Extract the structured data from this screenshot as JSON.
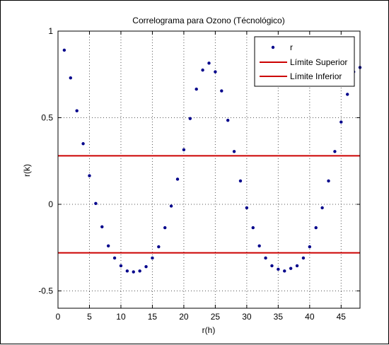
{
  "chart_data": {
    "type": "scatter",
    "title": "Correlograma para Ozono (Técnológico)",
    "xlabel": "r(h)",
    "ylabel": "r(k)",
    "xlim": [
      0,
      48
    ],
    "ylim": [
      -0.6,
      1
    ],
    "xticks": [
      0,
      5,
      10,
      15,
      20,
      25,
      30,
      35,
      40,
      45
    ],
    "yticks": [
      -0.5,
      0,
      0.5,
      1
    ],
    "ytick_labels": [
      "-0.5",
      "0",
      "0.5",
      "1"
    ],
    "grid": true,
    "legend_position": "top-right",
    "series": [
      {
        "name": "r",
        "marker": "dot",
        "color": "#00008b",
        "x": [
          1,
          2,
          3,
          4,
          5,
          6,
          7,
          8,
          9,
          10,
          11,
          12,
          13,
          14,
          15,
          16,
          17,
          18,
          19,
          20,
          21,
          22,
          23,
          24,
          25,
          26,
          27,
          28,
          29,
          30,
          31,
          32,
          33,
          34,
          35,
          36,
          37,
          38,
          39,
          40,
          41,
          42,
          43,
          44,
          45,
          46,
          47,
          48
        ],
        "y": [
          0.89,
          0.73,
          0.54,
          0.35,
          0.165,
          0.005,
          -0.13,
          -0.24,
          -0.31,
          -0.355,
          -0.385,
          -0.39,
          -0.385,
          -0.36,
          -0.31,
          -0.245,
          -0.135,
          -0.01,
          0.145,
          0.315,
          0.495,
          0.665,
          0.775,
          0.815,
          0.765,
          0.655,
          0.485,
          0.305,
          0.135,
          -0.02,
          -0.135,
          -0.24,
          -0.31,
          -0.355,
          -0.375,
          -0.385,
          -0.37,
          -0.355,
          -0.31,
          -0.245,
          -0.135,
          -0.02,
          0.135,
          0.305,
          0.475,
          0.635,
          0.765,
          0.79
        ]
      }
    ],
    "hlines": [
      {
        "name": "Límite Superior",
        "y": 0.28,
        "color": "#cc0000"
      },
      {
        "name": "Límite Inferior",
        "y": -0.28,
        "color": "#cc0000"
      }
    ]
  }
}
